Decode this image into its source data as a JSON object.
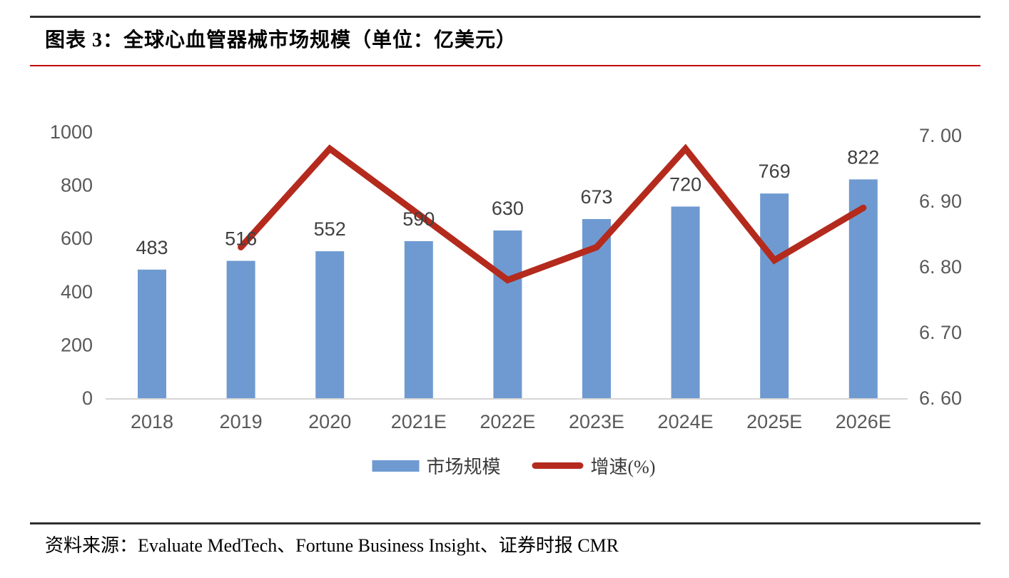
{
  "header": {
    "title": "图表 3：全球心血管器械市场规模（单位：亿美元）"
  },
  "footer": {
    "source": "资料来源：Evaluate MedTech、Fortune Business Insight、证券时报 CMR"
  },
  "colors": {
    "bar": "#6F9AD1",
    "line": "#B42A1D",
    "top_rule": "#2f2f2f",
    "footer_rule": "#2f2f2f",
    "title_underline": "#C00000",
    "axis_text": "#595959",
    "value_label_text": "#404040",
    "baseline": "#d6d6d6"
  },
  "chart_data": {
    "type": "bar+line",
    "title": "全球心血管器械市场规模（单位：亿美元）",
    "categories": [
      "2018",
      "2019",
      "2020",
      "2021E",
      "2022E",
      "2023E",
      "2024E",
      "2025E",
      "2026E"
    ],
    "series": [
      {
        "name": "市场规模",
        "type": "bar",
        "axis": "left",
        "values": [
          483,
          516,
          552,
          590,
          630,
          673,
          720,
          769,
          822
        ],
        "data_labels": [
          "483",
          "516",
          "552",
          "590",
          "630",
          "673",
          "720",
          "769",
          "822"
        ]
      },
      {
        "name": "增速(%)",
        "type": "line",
        "axis": "right",
        "values": [
          null,
          6.83,
          6.98,
          6.88,
          6.78,
          6.83,
          6.98,
          6.81,
          6.89
        ]
      }
    ],
    "left_axis": {
      "min": 0,
      "max": 1000,
      "tick_labels": [
        "1000",
        "800",
        "600",
        "400",
        "200",
        "0"
      ]
    },
    "right_axis": {
      "min": 6.6,
      "max": 7.0,
      "tick_labels": [
        "7. 00",
        "6. 90",
        "6. 80",
        "6. 70",
        "6. 60"
      ]
    },
    "grid": false,
    "legend_position": "bottom",
    "legend": [
      {
        "label": "市场规模",
        "swatch": "bar"
      },
      {
        "label": "增速(%)",
        "swatch": "line"
      }
    ]
  }
}
